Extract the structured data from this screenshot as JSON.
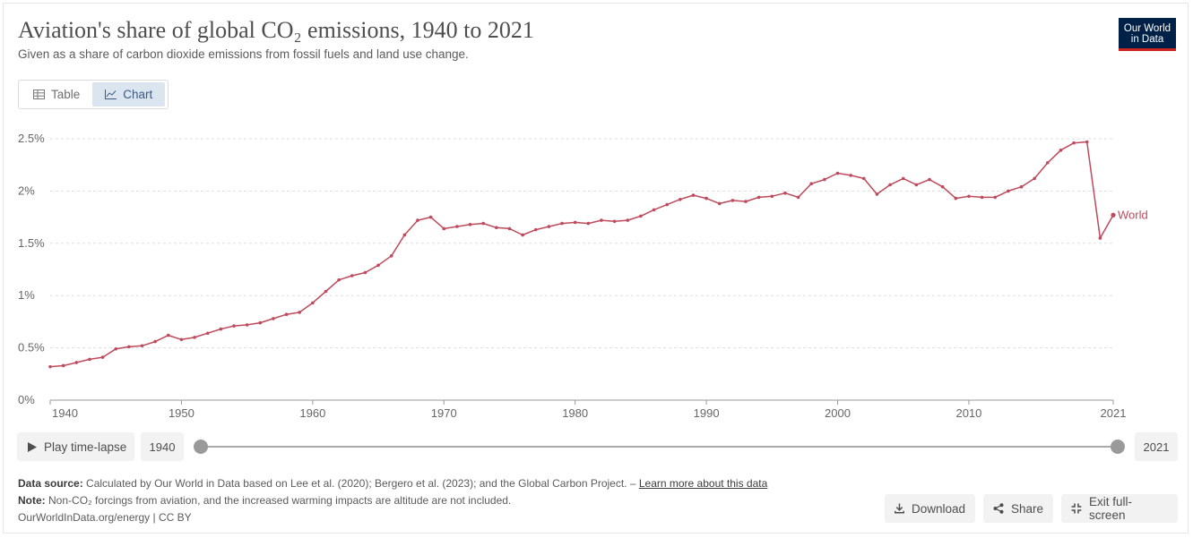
{
  "header": {
    "title": "Aviation's share of global CO₂ emissions, 1940 to 2021",
    "subtitle": "Given as a share of carbon dioxide emissions from fossil fuels and land use change.",
    "logo_line1": "Our World",
    "logo_line2": "in Data"
  },
  "tabs": [
    {
      "label": "Table",
      "icon": "table-icon",
      "active": false
    },
    {
      "label": "Chart",
      "icon": "line-chart-icon",
      "active": true
    }
  ],
  "chart_data": {
    "type": "line",
    "title": "Aviation's share of global CO₂ emissions, 1940 to 2021",
    "xlabel": "",
    "ylabel": "",
    "xlim": [
      1940,
      2021
    ],
    "ylim": [
      0,
      2.5
    ],
    "y_ticks": [
      0,
      0.5,
      1,
      1.5,
      2,
      2.5
    ],
    "y_tick_labels": [
      "0%",
      "0.5%",
      "1%",
      "1.5%",
      "2%",
      "2.5%"
    ],
    "x_ticks": [
      1940,
      1950,
      1960,
      1970,
      1980,
      1990,
      2000,
      2010,
      2021
    ],
    "x_tick_labels": [
      "1940",
      "1950",
      "1960",
      "1970",
      "1980",
      "1990",
      "2000",
      "2010",
      "2021"
    ],
    "grid": true,
    "line_color": "#be4a5c",
    "series": [
      {
        "name": "World",
        "x": [
          1940,
          1941,
          1942,
          1943,
          1944,
          1945,
          1946,
          1947,
          1948,
          1949,
          1950,
          1951,
          1952,
          1953,
          1954,
          1955,
          1956,
          1957,
          1958,
          1959,
          1960,
          1961,
          1962,
          1963,
          1964,
          1965,
          1966,
          1967,
          1968,
          1969,
          1970,
          1971,
          1972,
          1973,
          1974,
          1975,
          1976,
          1977,
          1978,
          1979,
          1980,
          1981,
          1982,
          1983,
          1984,
          1985,
          1986,
          1987,
          1988,
          1989,
          1990,
          1991,
          1992,
          1993,
          1994,
          1995,
          1996,
          1997,
          1998,
          1999,
          2000,
          2001,
          2002,
          2003,
          2004,
          2005,
          2006,
          2007,
          2008,
          2009,
          2010,
          2011,
          2012,
          2013,
          2014,
          2015,
          2016,
          2017,
          2018,
          2019,
          2020,
          2021
        ],
        "values": [
          0.32,
          0.33,
          0.36,
          0.39,
          0.41,
          0.49,
          0.51,
          0.52,
          0.56,
          0.62,
          0.58,
          0.6,
          0.64,
          0.68,
          0.71,
          0.72,
          0.74,
          0.78,
          0.82,
          0.84,
          0.93,
          1.04,
          1.15,
          1.19,
          1.22,
          1.29,
          1.38,
          1.58,
          1.72,
          1.75,
          1.64,
          1.66,
          1.68,
          1.69,
          1.65,
          1.64,
          1.58,
          1.63,
          1.66,
          1.69,
          1.7,
          1.69,
          1.72,
          1.71,
          1.72,
          1.76,
          1.82,
          1.87,
          1.92,
          1.96,
          1.93,
          1.88,
          1.91,
          1.9,
          1.94,
          1.95,
          1.98,
          1.94,
          2.07,
          2.11,
          2.17,
          2.15,
          2.12,
          1.97,
          2.06,
          2.12,
          2.06,
          2.11,
          2.04,
          1.93,
          1.95,
          1.94,
          1.94,
          2.0,
          2.04,
          2.12,
          2.27,
          2.39,
          2.46,
          2.47,
          1.55,
          1.77
        ]
      }
    ]
  },
  "timeline": {
    "play_label": "Play time-lapse",
    "start_year": "1940",
    "end_year": "2021"
  },
  "footer": {
    "source_label": "Data source:",
    "source_text": "Calculated by Our World in Data based on Lee et al. (2020); Bergero et al. (2023); and the Global Carbon Project. –",
    "learn_more": "Learn more about this data",
    "note_label": "Note:",
    "note_text": "Non-CO₂ forcings from aviation, and the increased warming impacts are altitude are not included.",
    "credit": "OurWorldInData.org/energy | CC BY"
  },
  "actions": {
    "download": "Download",
    "share": "Share",
    "exit_fullscreen": "Exit full-screen"
  }
}
